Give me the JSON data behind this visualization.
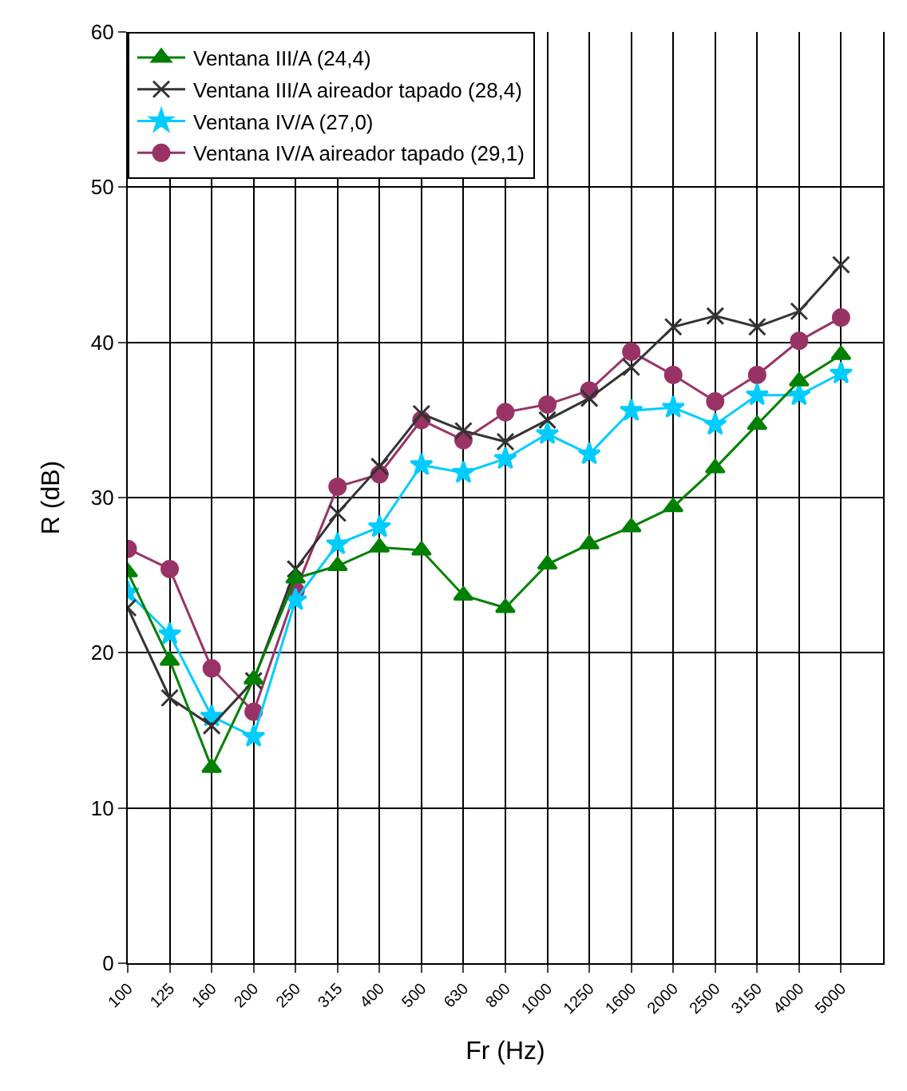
{
  "chart_data": {
    "type": "line",
    "xlabel": "Fr (Hz)",
    "ylabel": "R (dB)",
    "categories": [
      "100",
      "125",
      "160",
      "200",
      "250",
      "315",
      "400",
      "500",
      "630",
      "800",
      "1000",
      "1250",
      "1600",
      "2000",
      "2500",
      "3150",
      "4000",
      "5000"
    ],
    "ylim": [
      0,
      60
    ],
    "yticks": [
      0,
      10,
      20,
      30,
      40,
      50,
      60
    ],
    "grid": true,
    "legend": "top left",
    "series": [
      {
        "name": "Ventana III/A (24,4)",
        "color": "#008000",
        "marker": "triangle",
        "values": [
          25.2,
          19.5,
          12.6,
          18.3,
          24.8,
          25.6,
          26.8,
          26.6,
          23.7,
          22.9,
          25.7,
          27.0,
          28.1,
          29.4,
          31.9,
          34.7,
          37.5,
          39.2
        ]
      },
      {
        "name": "Ventana III/A aireador tapado (28,4)",
        "color": "#333333",
        "marker": "cross",
        "values": [
          22.9,
          17.1,
          15.3,
          18.2,
          25.4,
          29.0,
          32.0,
          35.4,
          34.3,
          33.6,
          35.0,
          36.4,
          38.4,
          41.0,
          41.7,
          41.0,
          42.0,
          45.0
        ]
      },
      {
        "name": "Ventana IV/A (27,0)",
        "color": "#00ccff",
        "marker": "star",
        "values": [
          23.9,
          21.2,
          15.9,
          14.6,
          23.4,
          27.0,
          28.1,
          32.1,
          31.6,
          32.5,
          34.1,
          32.8,
          35.6,
          35.8,
          34.7,
          36.6,
          36.6,
          38.0
        ]
      },
      {
        "name": "Ventana IV/A aireador tapado (29,1)",
        "color": "#993366",
        "marker": "circle",
        "values": [
          26.7,
          25.4,
          19.0,
          16.2,
          24.0,
          30.7,
          31.5,
          35.0,
          33.7,
          35.5,
          36.0,
          36.9,
          39.4,
          37.9,
          36.2,
          37.9,
          40.1,
          41.6
        ]
      }
    ]
  }
}
